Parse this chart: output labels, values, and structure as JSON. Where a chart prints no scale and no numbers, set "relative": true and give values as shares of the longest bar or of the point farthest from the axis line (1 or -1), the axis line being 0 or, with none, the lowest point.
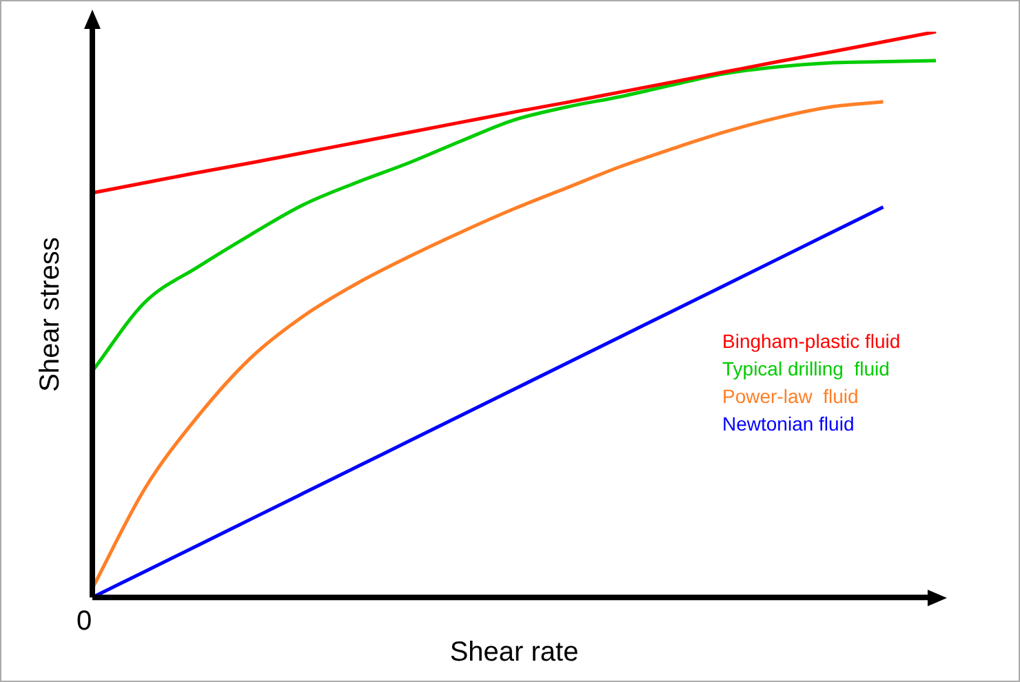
{
  "chart_data": {
    "type": "line",
    "relative": true,
    "xlabel": "Shear rate",
    "ylabel": "Shear stress",
    "annotations": [
      "0"
    ],
    "grid": false,
    "legend": "bottom right",
    "marker": "none",
    "line_style": "solid",
    "categories": [
      null,
      null,
      null,
      null,
      null,
      null,
      null,
      null,
      null,
      null,
      null,
      null,
      null,
      null,
      null,
      null,
      null
    ],
    "series": [
      {
        "name": "Bingham-plastic fluid",
        "color": "#ff0000",
        "values": [
          0.715,
          0.733,
          0.751,
          0.768,
          0.786,
          0.804,
          0.822,
          0.84,
          0.858,
          0.875,
          0.893,
          0.911,
          0.929,
          0.947,
          0.964,
          0.982,
          1.0
        ]
      },
      {
        "name": "Typical drilling  fluid",
        "color": "#00cc00",
        "values": [
          0.4,
          0.522,
          0.584,
          0.641,
          0.694,
          0.733,
          0.768,
          0.807,
          0.844,
          0.867,
          0.885,
          0.906,
          0.926,
          0.938,
          0.945,
          0.947,
          0.949
        ]
      },
      {
        "name": "Power-law  fluid",
        "color": "#ff7f27",
        "values": [
          0.016,
          0.193,
          0.32,
          0.423,
          0.497,
          0.554,
          0.602,
          0.646,
          0.687,
          0.724,
          0.761,
          0.793,
          0.823,
          0.848,
          0.867,
          0.876,
          null
        ]
      },
      {
        "name": "Newtonian fluid",
        "color": "#0000ff",
        "values": [
          0,
          0.046,
          0.092,
          0.138,
          0.184,
          0.23,
          0.276,
          0.322,
          0.368,
          0.414,
          0.46,
          0.506,
          0.552,
          0.598,
          0.644,
          0.69,
          null
        ]
      }
    ]
  }
}
